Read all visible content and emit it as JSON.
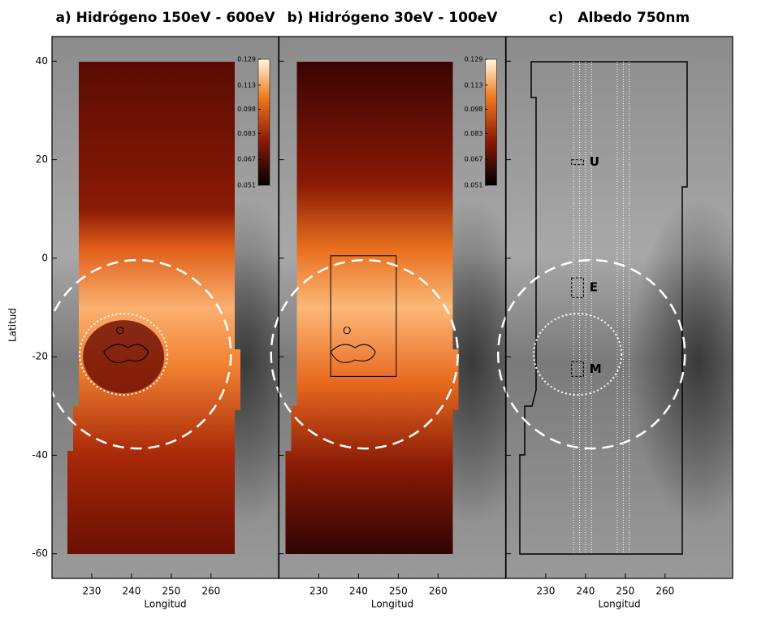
{
  "y_axis": {
    "label": "Latitud",
    "lim": [
      -65,
      45
    ],
    "ticks": [
      40,
      20,
      0,
      -20,
      -40,
      -60
    ]
  },
  "panels": [
    {
      "title": "a) Hidrógeno 150eV - 600eV",
      "xlabel": "Longitud",
      "xlim": [
        220,
        277
      ],
      "xticks": [
        230,
        240,
        250,
        260
      ],
      "colorbar": {
        "lim": [
          0.051,
          0.129
        ],
        "ticks": [
          0.051,
          0.067,
          0.083,
          0.098,
          0.113,
          0.129
        ]
      }
    },
    {
      "title": "b) Hidrógeno 30eV - 100eV",
      "xlabel": "Longitud",
      "xlim": [
        220,
        277
      ],
      "xticks": [
        230,
        240,
        250,
        260
      ],
      "colorbar": {
        "lim": [
          0.051,
          0.129
        ],
        "ticks": [
          0.051,
          0.067,
          0.083,
          0.098,
          0.113,
          0.129
        ]
      }
    },
    {
      "title": "c)   Albedo 750nm",
      "xlabel": "Longitud",
      "xlim": [
        220,
        277
      ],
      "xticks": [
        230,
        240,
        250,
        260
      ],
      "labels": [
        "U",
        "E",
        "M"
      ]
    }
  ]
}
